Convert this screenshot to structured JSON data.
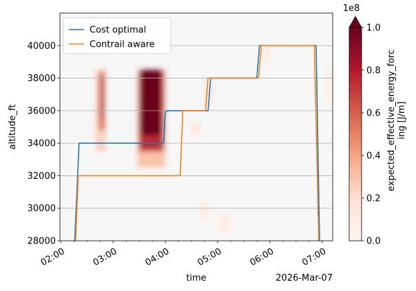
{
  "chart_data": {
    "type": "heatmap",
    "title": "",
    "xlabel": "time",
    "ylabel": "altitude_ft",
    "date_label": "2026-Mar-07",
    "x_ticks": [
      "02:00",
      "03:00",
      "04:00",
      "05:00",
      "06:00",
      "07:00"
    ],
    "y_ticks": [
      "28000",
      "30000",
      "32000",
      "34000",
      "36000",
      "38000",
      "40000"
    ],
    "xlim": [
      "2026-03-07 01:59",
      "2026-03-07 07:12"
    ],
    "ylim": [
      28000,
      42000
    ],
    "grid": "horizontal",
    "legend_placement": "top-left",
    "colorbar": {
      "label": "expected_effective_energy_forcing [J/m]",
      "label_lines": [
        "expected_effective_energy_forc",
        "ing [J/m]"
      ],
      "exponent_label": "1e8",
      "ticks": [
        "0.0",
        "0.2",
        "0.4",
        "0.6",
        "0.8",
        "1.0"
      ],
      "range": [
        0,
        1
      ],
      "extend": "max",
      "colormap": [
        "#fff5f0",
        "#fde0d2",
        "#f4a582",
        "#d6604d",
        "#b2182b",
        "#67001f"
      ]
    },
    "background_color": "#f7f7f7",
    "heat_cells": [
      {
        "t0": "02:40",
        "t1": "02:52",
        "y0": 33500,
        "y1": 38500,
        "value": 0.25
      },
      {
        "t0": "02:44",
        "t1": "02:50",
        "y0": 34800,
        "y1": 38400,
        "value": 0.6
      },
      {
        "t0": "02:46",
        "t1": "02:49",
        "y0": 35500,
        "y1": 38000,
        "value": 0.85
      },
      {
        "t0": "03:28",
        "t1": "04:00",
        "y0": 32500,
        "y1": 38500,
        "value": 0.3
      },
      {
        "t0": "03:30",
        "t1": "03:58",
        "y0": 33500,
        "y1": 38500,
        "value": 0.75
      },
      {
        "t0": "03:31",
        "t1": "03:55",
        "y0": 34500,
        "y1": 38500,
        "value": 1.0
      },
      {
        "t0": "04:30",
        "t1": "04:40",
        "y0": 34500,
        "y1": 35200,
        "value": 0.12
      },
      {
        "t0": "04:45",
        "t1": "04:55",
        "y0": 36300,
        "y1": 37800,
        "value": 0.12
      },
      {
        "t0": "04:42",
        "t1": "04:48",
        "y0": 29300,
        "y1": 30500,
        "value": 0.12
      },
      {
        "t0": "05:00",
        "t1": "05:15",
        "y0": 28500,
        "y1": 29500,
        "value": 0.07
      },
      {
        "t0": "05:50",
        "t1": "06:00",
        "y0": 39000,
        "y1": 40000,
        "value": 0.1
      },
      {
        "t0": "07:05",
        "t1": "07:12",
        "y0": 36500,
        "y1": 38500,
        "value": 0.06
      }
    ],
    "series": [
      {
        "name": "Cost optimal",
        "color": "#1f77b4",
        "points": [
          [
            "02:16",
            28000
          ],
          [
            "02:21",
            34000
          ],
          [
            "03:58",
            34000
          ],
          [
            "04:00",
            35900
          ],
          [
            "04:02",
            36000
          ],
          [
            "04:49",
            36000
          ],
          [
            "04:52",
            38000
          ],
          [
            "05:45",
            38000
          ],
          [
            "05:48",
            40000
          ],
          [
            "06:53",
            40000
          ],
          [
            "06:57",
            28000
          ]
        ]
      },
      {
        "name": "Contrail aware",
        "color": "#ff7f0e",
        "points": [
          [
            "02:17",
            28000
          ],
          [
            "02:20",
            32000
          ],
          [
            "04:17",
            32000
          ],
          [
            "04:20",
            36000
          ],
          [
            "04:46",
            36000
          ],
          [
            "04:49",
            38000
          ],
          [
            "05:47",
            38000
          ],
          [
            "05:50",
            40000
          ],
          [
            "06:51",
            40000
          ],
          [
            "06:56",
            28000
          ]
        ]
      }
    ]
  }
}
